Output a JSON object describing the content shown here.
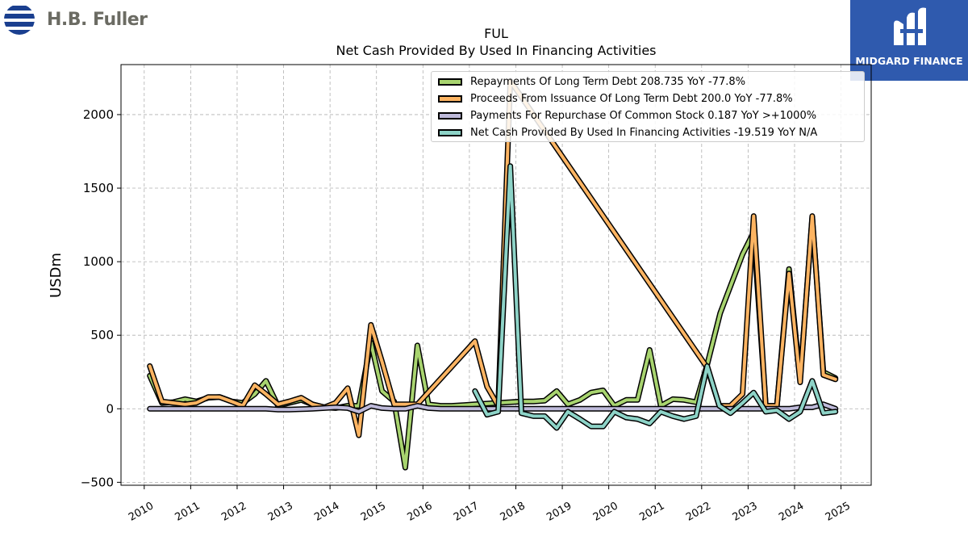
{
  "brand": {
    "company_name": "H.B. Fuller",
    "badge_text": "MIDGARD FINANCE",
    "badge_color": "#2f5aae"
  },
  "chart_data": {
    "type": "line",
    "title": "FUL",
    "subtitle": "Net Cash Provided By Used In Financing Activities",
    "ylabel": "USDm",
    "xlabel": "",
    "xlim": [
      2009.5,
      2025.65
    ],
    "ylim": [
      -520,
      2340
    ],
    "x_ticks": [
      "2010",
      "2011",
      "2012",
      "2013",
      "2014",
      "2015",
      "2016",
      "2017",
      "2018",
      "2019",
      "2020",
      "2021",
      "2022",
      "2023",
      "2024",
      "2025"
    ],
    "y_ticks": [
      -500,
      0,
      500,
      1000,
      1500,
      2000
    ],
    "y_tick_labels": [
      "−500",
      "0",
      "500",
      "1000",
      "1500",
      "2000"
    ],
    "grid": true,
    "legend_position": "top-right",
    "series": [
      {
        "name": "Repayments Of Long Term Debt",
        "legend": "Repayments Of Long Term Debt  208.735 YoY -77.8%",
        "color": "#a8d46f",
        "points": [
          [
            2010.12,
            225
          ],
          [
            2010.38,
            40
          ],
          [
            2010.62,
            45
          ],
          [
            2010.88,
            65
          ],
          [
            2011.12,
            50
          ],
          [
            2011.38,
            75
          ],
          [
            2011.62,
            80
          ],
          [
            2011.88,
            50
          ],
          [
            2012.12,
            40
          ],
          [
            2012.38,
            100
          ],
          [
            2012.62,
            190
          ],
          [
            2012.88,
            20
          ],
          [
            2013.12,
            40
          ],
          [
            2013.38,
            60
          ],
          [
            2013.62,
            30
          ],
          [
            2013.88,
            10
          ],
          [
            2014.12,
            5
          ],
          [
            2014.38,
            20
          ],
          [
            2014.62,
            20
          ],
          [
            2014.88,
            450
          ],
          [
            2015.12,
            120
          ],
          [
            2015.38,
            50
          ],
          [
            2015.62,
            -400
          ],
          [
            2015.88,
            430
          ],
          [
            2016.12,
            30
          ],
          [
            2016.38,
            20
          ],
          [
            2016.62,
            20
          ],
          [
            2016.88,
            25
          ],
          [
            2017.12,
            30
          ],
          [
            2017.38,
            35
          ],
          [
            2017.62,
            40
          ],
          [
            2017.88,
            45
          ],
          [
            2018.12,
            50
          ],
          [
            2018.38,
            50
          ],
          [
            2018.62,
            55
          ],
          [
            2018.88,
            120
          ],
          [
            2019.12,
            30
          ],
          [
            2019.38,
            60
          ],
          [
            2019.62,
            110
          ],
          [
            2019.88,
            125
          ],
          [
            2020.12,
            20
          ],
          [
            2020.38,
            60
          ],
          [
            2020.62,
            60
          ],
          [
            2020.88,
            400
          ],
          [
            2021.12,
            20
          ],
          [
            2021.38,
            65
          ],
          [
            2021.62,
            60
          ],
          [
            2021.88,
            45
          ],
          [
            2022.12,
            300
          ],
          [
            2022.4,
            650
          ],
          [
            2022.88,
            1050
          ],
          [
            2023.12,
            1200
          ],
          [
            2023.38,
            20
          ],
          [
            2023.62,
            20
          ],
          [
            2023.88,
            950
          ],
          [
            2024.12,
            200
          ],
          [
            2024.38,
            1300
          ],
          [
            2024.62,
            250
          ],
          [
            2024.88,
            208.7
          ]
        ]
      },
      {
        "name": "Proceeds From Issuance Of Long Term Debt",
        "legend": "Proceeds From Issuance Of Long Term Debt  200.0 YoY -77.8%",
        "color": "#fdb462",
        "points": [
          [
            2010.12,
            290
          ],
          [
            2010.38,
            50
          ],
          [
            2010.62,
            40
          ],
          [
            2010.88,
            30
          ],
          [
            2011.12,
            40
          ],
          [
            2011.38,
            80
          ],
          [
            2011.62,
            80
          ],
          [
            2011.88,
            50
          ],
          [
            2012.12,
            20
          ],
          [
            2012.38,
            160
          ],
          [
            2012.62,
            100
          ],
          [
            2012.88,
            30
          ],
          [
            2013.12,
            50
          ],
          [
            2013.38,
            75
          ],
          [
            2013.62,
            30
          ],
          [
            2013.88,
            10
          ],
          [
            2014.12,
            40
          ],
          [
            2014.38,
            140
          ],
          [
            2014.62,
            -180
          ],
          [
            2014.88,
            570
          ],
          [
            2015.12,
            320
          ],
          [
            2015.38,
            30
          ],
          [
            2015.62,
            30
          ],
          [
            2015.88,
            30
          ],
          [
            2017.12,
            460
          ],
          [
            2017.38,
            150
          ],
          [
            2017.62,
            20
          ],
          [
            2017.88,
            2230
          ],
          [
            2022.12,
            280
          ],
          [
            2022.38,
            20
          ],
          [
            2022.62,
            20
          ],
          [
            2022.88,
            100
          ],
          [
            2023.12,
            1310
          ],
          [
            2023.38,
            20
          ],
          [
            2023.62,
            20
          ],
          [
            2023.88,
            920
          ],
          [
            2024.12,
            180
          ],
          [
            2024.38,
            1310
          ],
          [
            2024.62,
            230
          ],
          [
            2024.88,
            200.0
          ]
        ]
      },
      {
        "name": "Payments For Repurchase Of Common Stock",
        "legend": "Payments For Repurchase Of Common Stock  0.187 YoY >+1000%",
        "color": "#bebada",
        "points": [
          [
            2010.12,
            0
          ],
          [
            2010.38,
            0
          ],
          [
            2010.62,
            0
          ],
          [
            2010.88,
            0
          ],
          [
            2011.12,
            0
          ],
          [
            2011.38,
            0
          ],
          [
            2011.62,
            0
          ],
          [
            2011.88,
            0
          ],
          [
            2012.12,
            0
          ],
          [
            2012.38,
            0
          ],
          [
            2012.62,
            0
          ],
          [
            2012.88,
            -5
          ],
          [
            2013.12,
            -5
          ],
          [
            2013.38,
            -3
          ],
          [
            2013.62,
            0
          ],
          [
            2013.88,
            5
          ],
          [
            2014.12,
            10
          ],
          [
            2014.38,
            5
          ],
          [
            2014.62,
            -20
          ],
          [
            2014.88,
            20
          ],
          [
            2015.12,
            5
          ],
          [
            2015.38,
            0
          ],
          [
            2015.62,
            0
          ],
          [
            2015.88,
            20
          ],
          [
            2016.12,
            5
          ],
          [
            2016.38,
            0
          ],
          [
            2016.62,
            0
          ],
          [
            2016.88,
            0
          ],
          [
            2017.12,
            0
          ],
          [
            2017.38,
            0
          ],
          [
            2017.62,
            0
          ],
          [
            2017.88,
            0
          ],
          [
            2018.12,
            0
          ],
          [
            2018.38,
            0
          ],
          [
            2018.62,
            0
          ],
          [
            2018.88,
            0
          ],
          [
            2019.12,
            0
          ],
          [
            2019.38,
            0
          ],
          [
            2019.62,
            0
          ],
          [
            2019.88,
            0
          ],
          [
            2020.12,
            0
          ],
          [
            2020.38,
            0
          ],
          [
            2020.62,
            0
          ],
          [
            2020.88,
            0
          ],
          [
            2021.12,
            0
          ],
          [
            2021.38,
            0
          ],
          [
            2021.62,
            0
          ],
          [
            2021.88,
            0
          ],
          [
            2022.12,
            0
          ],
          [
            2022.38,
            0
          ],
          [
            2022.62,
            0
          ],
          [
            2022.88,
            0
          ],
          [
            2023.12,
            0
          ],
          [
            2023.38,
            0
          ],
          [
            2023.62,
            0
          ],
          [
            2023.88,
            0
          ],
          [
            2024.12,
            10
          ],
          [
            2024.38,
            10
          ],
          [
            2024.62,
            30
          ],
          [
            2024.88,
            0.2
          ]
        ]
      },
      {
        "name": "Net Cash Provided By Used In Financing Activities",
        "legend": "Net Cash Provided By Used In Financing Activities  -19.519 YoY N/A",
        "color": "#8dd3c7",
        "points": [
          [
            2017.12,
            120
          ],
          [
            2017.38,
            -40
          ],
          [
            2017.62,
            -20
          ],
          [
            2017.88,
            1650
          ],
          [
            2018.12,
            -30
          ],
          [
            2018.38,
            -50
          ],
          [
            2018.62,
            -50
          ],
          [
            2018.88,
            -130
          ],
          [
            2019.12,
            -20
          ],
          [
            2019.38,
            -70
          ],
          [
            2019.62,
            -120
          ],
          [
            2019.88,
            -120
          ],
          [
            2020.12,
            -20
          ],
          [
            2020.38,
            -60
          ],
          [
            2020.62,
            -70
          ],
          [
            2020.88,
            -100
          ],
          [
            2021.12,
            -20
          ],
          [
            2021.38,
            -50
          ],
          [
            2021.62,
            -70
          ],
          [
            2021.88,
            -50
          ],
          [
            2022.12,
            290
          ],
          [
            2022.38,
            20
          ],
          [
            2022.62,
            -30
          ],
          [
            2022.88,
            40
          ],
          [
            2023.12,
            110
          ],
          [
            2023.38,
            -20
          ],
          [
            2023.62,
            -10
          ],
          [
            2023.88,
            -70
          ],
          [
            2024.12,
            -20
          ],
          [
            2024.38,
            190
          ],
          [
            2024.62,
            -30
          ],
          [
            2024.88,
            -19.5
          ]
        ]
      }
    ]
  }
}
